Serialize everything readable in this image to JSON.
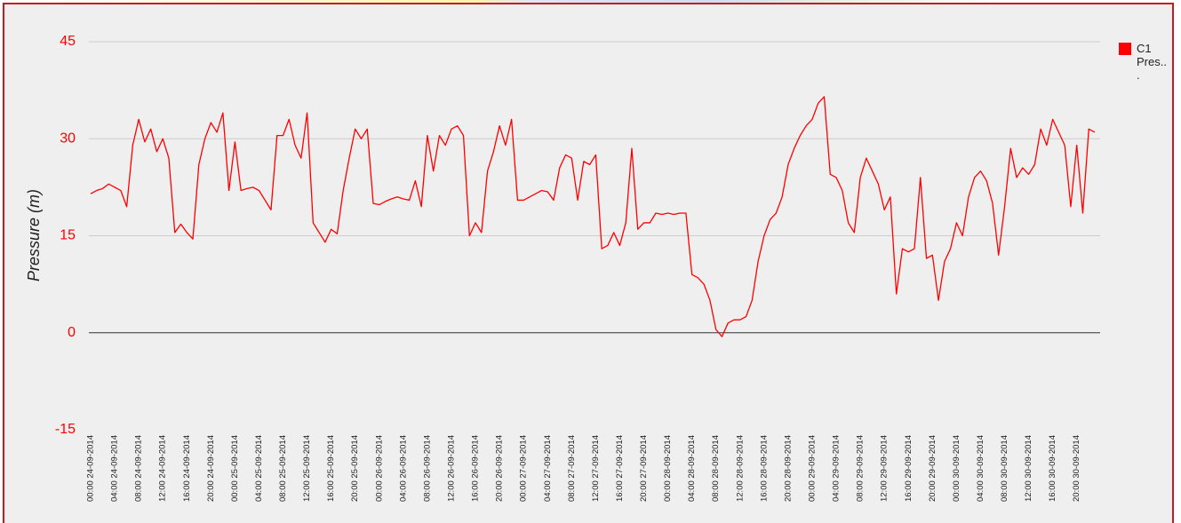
{
  "chart_data": {
    "type": "line",
    "y_label": "Pressure (m)",
    "ylim": [
      -15,
      45
    ],
    "yticks": [
      -15,
      0,
      15,
      30,
      45
    ],
    "grid": true,
    "legend": "right",
    "categories": [
      "00:00 24-09-2014",
      null,
      null,
      null,
      "04:00 24-09-2014",
      null,
      null,
      null,
      "08:00 24-09-2014",
      null,
      null,
      null,
      "12:00 24-09-2014",
      null,
      null,
      null,
      "16:00 24-09-2014",
      null,
      null,
      null,
      "20:00 24-09-2014",
      null,
      null,
      null,
      "00:00 25-09-2014",
      null,
      null,
      null,
      "04:00 25-09-2014",
      null,
      null,
      null,
      "08:00 25-09-2014",
      null,
      null,
      null,
      "12:00 25-09-2014",
      null,
      null,
      null,
      "16:00 25-09-2014",
      null,
      null,
      null,
      "20:00 25-09-2014",
      null,
      null,
      null,
      "00:00 26-09-2014",
      null,
      null,
      null,
      "04:00 26-09-2014",
      null,
      null,
      null,
      "08:00 26-09-2014",
      null,
      null,
      null,
      "12:00 26-09-2014",
      null,
      null,
      null,
      "16:00 26-09-2014",
      null,
      null,
      null,
      "20:00 26-09-2014",
      null,
      null,
      null,
      "00:00 27-09-2014",
      null,
      null,
      null,
      "04:00 27-09-2014",
      null,
      null,
      null,
      "08:00 27-09-2014",
      null,
      null,
      null,
      "12:00 27-09-2014",
      null,
      null,
      null,
      "16:00 27-09-2014",
      null,
      null,
      null,
      "20:00 27-09-2014",
      null,
      null,
      null,
      "00:00 28-09-2014",
      null,
      null,
      null,
      "04:00 28-09-2014",
      null,
      null,
      null,
      "08:00 28-09-2014",
      null,
      null,
      null,
      "12:00 28-09-2014",
      null,
      null,
      null,
      "16:00 28-09-2014",
      null,
      null,
      null,
      "20:00 28-09-2014",
      null,
      null,
      null,
      "00:00 29-09-2014",
      null,
      null,
      null,
      "04:00 29-09-2014",
      null,
      null,
      null,
      "08:00 29-09-2014",
      null,
      null,
      null,
      "12:00 29-09-2014",
      null,
      null,
      null,
      "16:00 29-09-2014",
      null,
      null,
      null,
      "20:00 29-09-2014",
      null,
      null,
      null,
      "00:00 30-09-2014",
      null,
      null,
      null,
      "04:00 30-09-2014",
      null,
      null,
      null,
      "08:00 30-09-2014",
      null,
      null,
      null,
      "12:00 30-09-2014",
      null,
      null,
      null,
      "16:00 30-09-2014",
      null,
      null,
      null,
      "20:00 30-09-2014",
      null,
      null,
      null
    ],
    "series": [
      {
        "name": "C1 Pres...",
        "color": "#ff0000",
        "values": [
          21.5,
          22,
          22.3,
          23,
          22.5,
          22,
          19.5,
          29,
          33,
          29.5,
          31.5,
          28,
          30,
          27,
          15.5,
          16.8,
          15.5,
          14.5,
          26,
          30,
          32.5,
          31,
          34,
          22,
          29.5,
          22,
          22.3,
          22.5,
          22,
          20.5,
          19,
          30.5,
          30.5,
          33,
          29,
          27,
          34,
          17,
          15.5,
          14,
          16,
          15.3,
          22,
          27,
          31.5,
          30,
          31.5,
          20,
          19.8,
          20.3,
          20.7,
          21,
          20.7,
          20.5,
          23.5,
          19.5,
          30.5,
          25,
          30.5,
          29,
          31.5,
          32,
          30.5,
          15,
          17,
          15.5,
          25,
          28,
          32,
          29,
          33,
          20.5,
          20.5,
          21,
          21.5,
          22,
          21.8,
          20.5,
          25.5,
          27.5,
          27,
          20.5,
          26.5,
          26,
          27.5,
          13,
          13.5,
          15.5,
          13.5,
          17,
          28.5,
          16,
          17,
          17,
          18.5,
          18.3,
          18.5,
          18.3,
          18.5,
          18.5,
          9,
          8.5,
          7.5,
          5,
          0.5,
          -0.6,
          1.5,
          2,
          2,
          2.5,
          5,
          11,
          15,
          17.5,
          18.5,
          21,
          26,
          28.5,
          30.5,
          32,
          33,
          35.5,
          36.5,
          24.5,
          24,
          22,
          17,
          15.5,
          24,
          27,
          25,
          23,
          19,
          21,
          6,
          13,
          12.5,
          13,
          24,
          11.5,
          12,
          5,
          11,
          13,
          17,
          15,
          21,
          24,
          25,
          23.5,
          20,
          12,
          19.5,
          28.5,
          24,
          25.5,
          24.5,
          26,
          31.5,
          29,
          33,
          31,
          29,
          19.5,
          29,
          18.5,
          31.5,
          31
        ]
      }
    ]
  }
}
